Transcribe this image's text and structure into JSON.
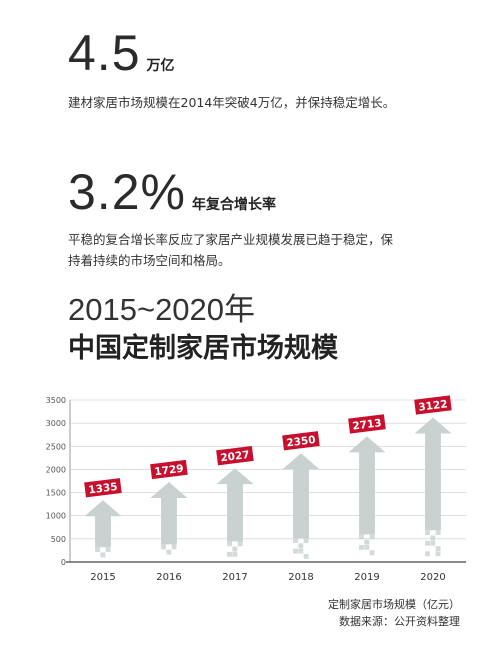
{
  "stat1": {
    "number": "4.5",
    "unit": "万亿",
    "description": "建材家居市场规模在2014年突破4万亿，并保持稳定增长。"
  },
  "stat2": {
    "number": "3.2%",
    "unit": "年复合增长率",
    "description": "平稳的复合增长率反应了家居产业规模发展已趋于稳定，保持着持续的市场空间和格局。"
  },
  "heading": {
    "years": "2015~2020年",
    "title": "中国定制家居市场规模"
  },
  "footer": {
    "series_label": "定制家居市场规模（亿元）",
    "source": "数据来源：公开资料整理"
  },
  "colors": {
    "arrow": "#c9d1d1",
    "label_bg": "#c8102e",
    "grid": "#cccccc"
  },
  "chart_data": {
    "type": "bar",
    "categories": [
      "2015",
      "2016",
      "2017",
      "2018",
      "2019",
      "2020"
    ],
    "series": [
      {
        "name": "定制家居市场规模（亿元）",
        "values": [
          1335,
          1729,
          2027,
          2350,
          2713,
          3122
        ]
      }
    ],
    "ylim": [
      0,
      3500
    ],
    "yticks": [
      0,
      500,
      1000,
      1500,
      2000,
      2500,
      3000,
      3500
    ],
    "grid": true
  }
}
